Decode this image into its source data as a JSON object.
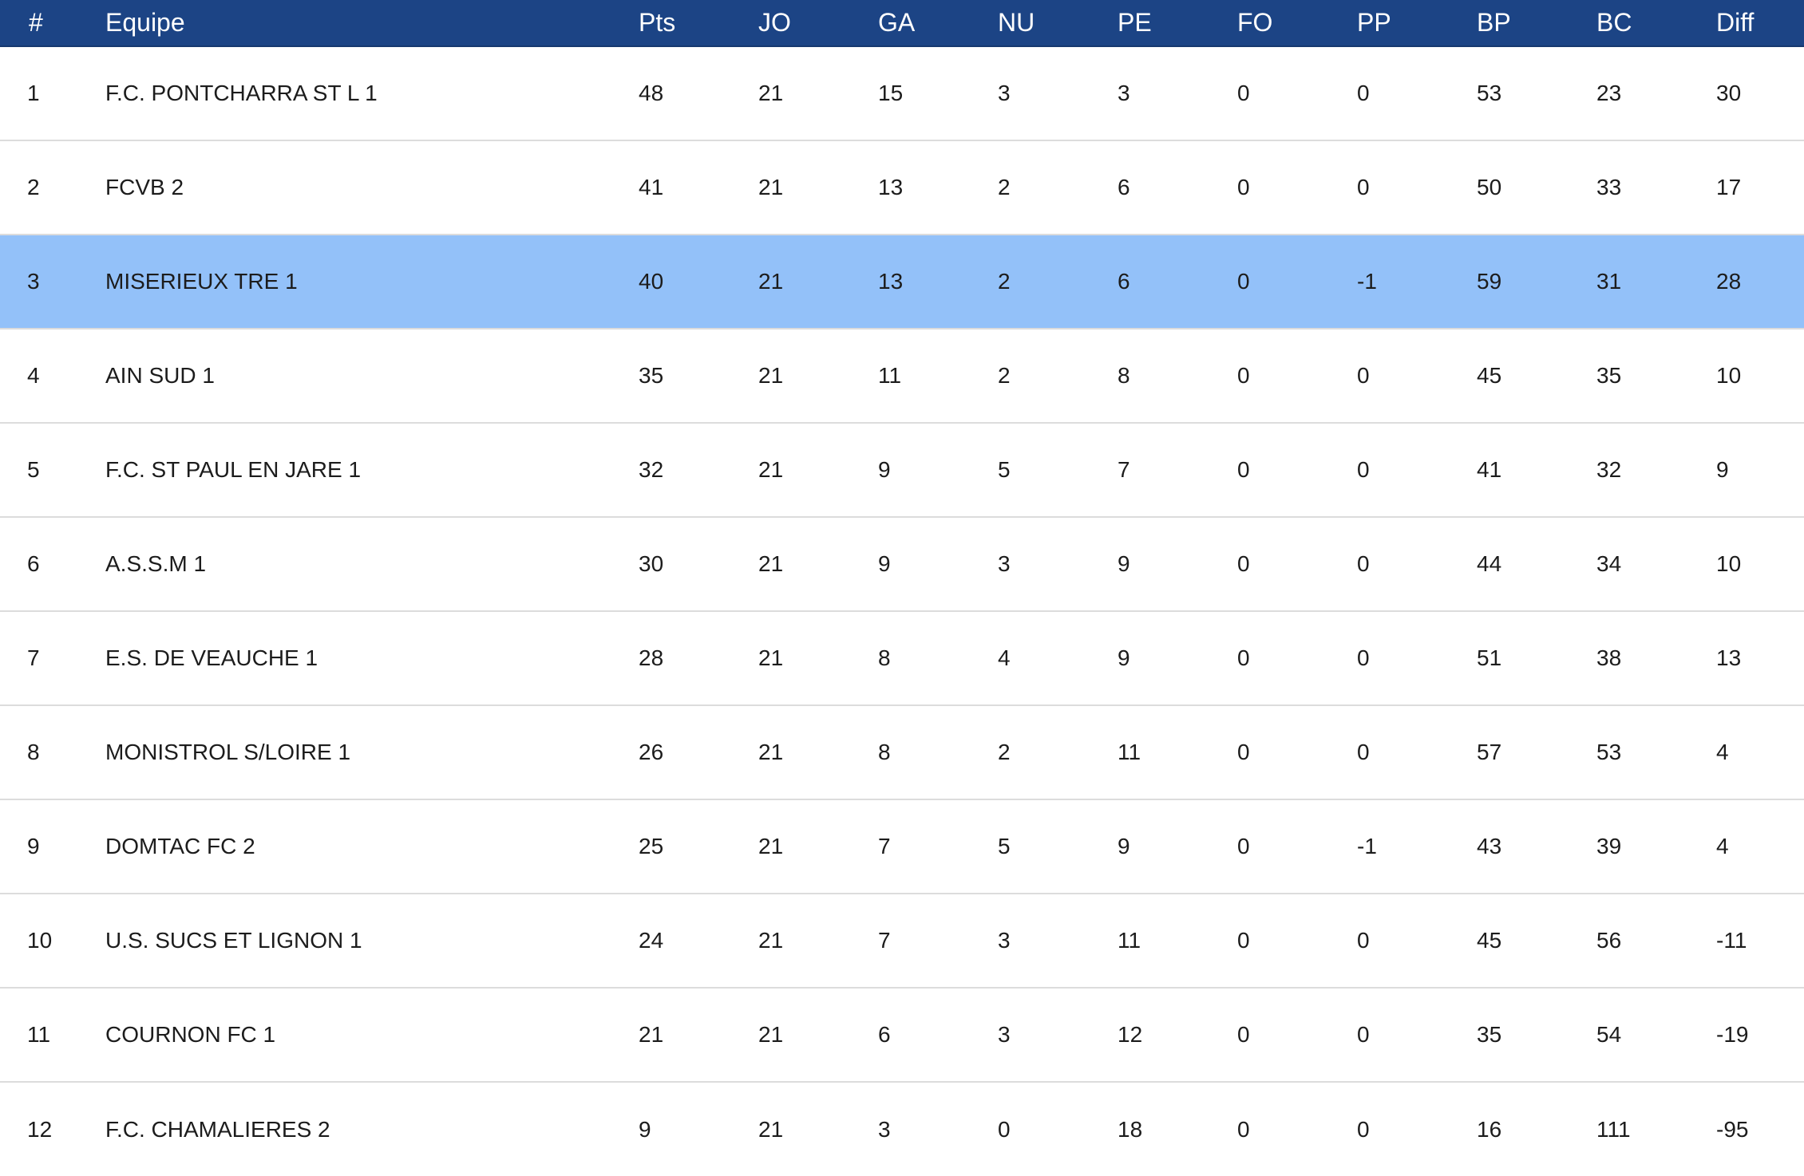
{
  "table": {
    "columns": [
      "#",
      "Equipe",
      "Pts",
      "JO",
      "GA",
      "NU",
      "PE",
      "FO",
      "PP",
      "BP",
      "BC",
      "Diff"
    ],
    "highlighted_rank": "3",
    "rows": [
      [
        "1",
        "F.C. PONTCHARRA ST L 1",
        "48",
        "21",
        "15",
        "3",
        "3",
        "0",
        "0",
        "53",
        "23",
        "30"
      ],
      [
        "2",
        "FCVB 2",
        "41",
        "21",
        "13",
        "2",
        "6",
        "0",
        "0",
        "50",
        "33",
        "17"
      ],
      [
        "3",
        "MISERIEUX TRE 1",
        "40",
        "21",
        "13",
        "2",
        "6",
        "0",
        "-1",
        "59",
        "31",
        "28"
      ],
      [
        "4",
        "AIN SUD 1",
        "35",
        "21",
        "11",
        "2",
        "8",
        "0",
        "0",
        "45",
        "35",
        "10"
      ],
      [
        "5",
        "F.C. ST PAUL EN JARE 1",
        "32",
        "21",
        "9",
        "5",
        "7",
        "0",
        "0",
        "41",
        "32",
        "9"
      ],
      [
        "6",
        "A.S.S.M 1",
        "30",
        "21",
        "9",
        "3",
        "9",
        "0",
        "0",
        "44",
        "34",
        "10"
      ],
      [
        "7",
        "E.S. DE VEAUCHE 1",
        "28",
        "21",
        "8",
        "4",
        "9",
        "0",
        "0",
        "51",
        "38",
        "13"
      ],
      [
        "8",
        "MONISTROL S/LOIRE 1",
        "26",
        "21",
        "8",
        "2",
        "11",
        "0",
        "0",
        "57",
        "53",
        "4"
      ],
      [
        "9",
        "DOMTAC FC 2",
        "25",
        "21",
        "7",
        "5",
        "9",
        "0",
        "-1",
        "43",
        "39",
        "4"
      ],
      [
        "10",
        "U.S. SUCS ET LIGNON 1",
        "24",
        "21",
        "7",
        "3",
        "11",
        "0",
        "0",
        "45",
        "56",
        "-11"
      ],
      [
        "11",
        "COURNON FC 1",
        "21",
        "21",
        "6",
        "3",
        "12",
        "0",
        "0",
        "35",
        "54",
        "-19"
      ],
      [
        "12",
        "F.C. CHAMALIERES 2",
        "9",
        "21",
        "3",
        "0",
        "18",
        "0",
        "0",
        "16",
        "111",
        "-95"
      ]
    ]
  },
  "colors": {
    "header_bg": "#1c4485",
    "header_text": "#ffffff",
    "highlight_row_bg": "#93c1f9",
    "row_divider": "#dcdcdc"
  }
}
